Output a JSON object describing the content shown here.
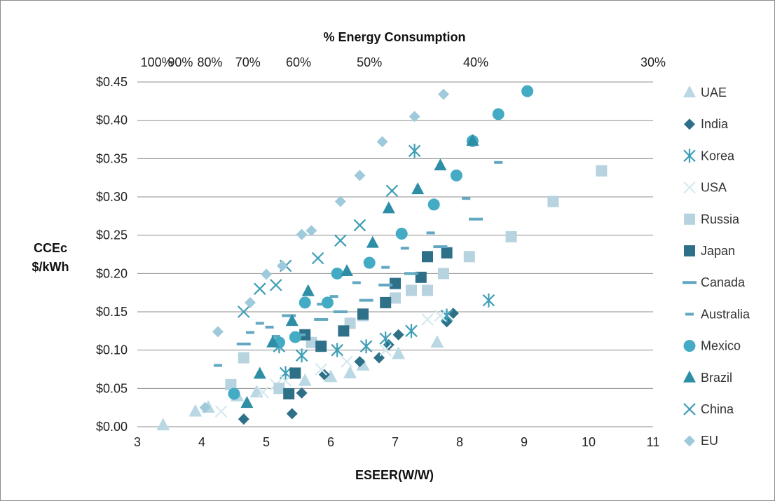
{
  "chart_data": {
    "type": "scatter",
    "xlabel": "ESEER(W/W)",
    "x2label": "% Energy Consumption",
    "ylabel_line1": "CCEc",
    "ylabel_line2": "$/kWh",
    "xlim": [
      3,
      11
    ],
    "ylim": [
      0,
      0.45
    ],
    "x_ticks": [
      "3",
      "4",
      "5",
      "6",
      "7",
      "8",
      "9",
      "10",
      "11"
    ],
    "x2_ticks": [
      "100%",
      "90%",
      "80%",
      "70%",
      "60%",
      "50%",
      "40%",
      "30%"
    ],
    "y_ticks": [
      "$0.00",
      "$0.05",
      "$0.10",
      "$0.15",
      "$0.20",
      "$0.25",
      "$0.30",
      "$0.35",
      "$0.40",
      "$0.45"
    ],
    "grid": "horizontal",
    "legend_position": "right",
    "series": [
      {
        "name": "UAE",
        "marker": "triangle",
        "color": "#b9d8e3",
        "points": [
          [
            3.4,
            0.002
          ],
          [
            3.9,
            0.02
          ],
          [
            4.1,
            0.025
          ],
          [
            4.55,
            0.04
          ],
          [
            4.85,
            0.045
          ],
          [
            5.6,
            0.06
          ],
          [
            6.0,
            0.065
          ],
          [
            6.3,
            0.07
          ],
          [
            6.5,
            0.08
          ],
          [
            7.05,
            0.095
          ],
          [
            7.65,
            0.11
          ]
        ]
      },
      {
        "name": "India",
        "marker": "diamond",
        "color": "#2e7088",
        "points": [
          [
            4.65,
            0.01
          ],
          [
            5.4,
            0.017
          ],
          [
            5.55,
            0.044
          ],
          [
            5.9,
            0.068
          ],
          [
            6.45,
            0.085
          ],
          [
            6.75,
            0.09
          ],
          [
            6.9,
            0.107
          ],
          [
            7.05,
            0.12
          ],
          [
            7.8,
            0.137
          ],
          [
            7.9,
            0.148
          ]
        ]
      },
      {
        "name": "Korea",
        "marker": "asterisk",
        "color": "#3d9eb5",
        "points": [
          [
            5.2,
            0.105
          ],
          [
            5.3,
            0.07
          ],
          [
            5.55,
            0.093
          ],
          [
            6.1,
            0.1
          ],
          [
            6.55,
            0.105
          ],
          [
            6.85,
            0.115
          ],
          [
            7.25,
            0.125
          ],
          [
            7.8,
            0.145
          ],
          [
            8.45,
            0.165
          ],
          [
            7.3,
            0.36
          ]
        ]
      },
      {
        "name": "USA",
        "marker": "x",
        "color": "#d6e9f0",
        "points": [
          [
            4.3,
            0.02
          ],
          [
            4.95,
            0.045
          ],
          [
            5.15,
            0.055
          ],
          [
            5.3,
            0.06
          ],
          [
            5.85,
            0.075
          ],
          [
            6.25,
            0.085
          ],
          [
            6.85,
            0.1
          ],
          [
            7.5,
            0.14
          ],
          [
            7.7,
            0.145
          ]
        ]
      },
      {
        "name": "Russia",
        "marker": "square",
        "color": "#b6d3df",
        "points": [
          [
            4.45,
            0.055
          ],
          [
            4.65,
            0.09
          ],
          [
            5.2,
            0.05
          ],
          [
            5.7,
            0.11
          ],
          [
            6.3,
            0.135
          ],
          [
            6.5,
            0.145
          ],
          [
            7.0,
            0.168
          ],
          [
            7.25,
            0.178
          ],
          [
            7.5,
            0.178
          ],
          [
            7.75,
            0.2
          ],
          [
            8.15,
            0.222
          ],
          [
            8.8,
            0.248
          ],
          [
            9.45,
            0.294
          ],
          [
            10.2,
            0.334
          ]
        ]
      },
      {
        "name": "Japan",
        "marker": "square",
        "color": "#2e7088",
        "points": [
          [
            5.35,
            0.043
          ],
          [
            5.45,
            0.07
          ],
          [
            5.6,
            0.12
          ],
          [
            5.85,
            0.105
          ],
          [
            6.2,
            0.125
          ],
          [
            6.5,
            0.147
          ],
          [
            6.85,
            0.162
          ],
          [
            7.0,
            0.187
          ],
          [
            7.4,
            0.195
          ],
          [
            7.5,
            0.222
          ],
          [
            7.8,
            0.227
          ]
        ]
      },
      {
        "name": "Canada",
        "marker": "dash-long",
        "color": "#62a8c2",
        "points": [
          [
            4.65,
            0.108
          ],
          [
            5.35,
            0.145
          ],
          [
            5.5,
            0.12
          ],
          [
            5.85,
            0.14
          ],
          [
            6.15,
            0.15
          ],
          [
            6.55,
            0.165
          ],
          [
            6.85,
            0.185
          ],
          [
            7.25,
            0.2
          ],
          [
            7.7,
            0.235
          ],
          [
            8.25,
            0.271
          ]
        ]
      },
      {
        "name": "Australia",
        "marker": "dash-short",
        "color": "#62a8c2",
        "points": [
          [
            4.25,
            0.08
          ],
          [
            4.75,
            0.123
          ],
          [
            4.9,
            0.135
          ],
          [
            5.05,
            0.13
          ],
          [
            5.15,
            0.118
          ],
          [
            5.85,
            0.16
          ],
          [
            6.05,
            0.17
          ],
          [
            6.4,
            0.188
          ],
          [
            6.85,
            0.208
          ],
          [
            7.15,
            0.233
          ],
          [
            7.55,
            0.253
          ],
          [
            8.1,
            0.298
          ],
          [
            8.6,
            0.345
          ]
        ]
      },
      {
        "name": "Mexico",
        "marker": "circle",
        "color": "#43abc3",
        "points": [
          [
            4.5,
            0.043
          ],
          [
            5.2,
            0.11
          ],
          [
            5.45,
            0.117
          ],
          [
            5.6,
            0.162
          ],
          [
            5.95,
            0.162
          ],
          [
            6.1,
            0.2
          ],
          [
            6.6,
            0.214
          ],
          [
            7.1,
            0.252
          ],
          [
            7.6,
            0.29
          ],
          [
            7.95,
            0.328
          ],
          [
            8.2,
            0.373
          ],
          [
            8.6,
            0.408
          ],
          [
            9.05,
            0.438
          ]
        ]
      },
      {
        "name": "Brazil",
        "marker": "triangle",
        "color": "#2e8ea6",
        "points": [
          [
            4.7,
            0.031
          ],
          [
            4.9,
            0.069
          ],
          [
            5.1,
            0.11
          ],
          [
            5.4,
            0.138
          ],
          [
            5.65,
            0.177
          ],
          [
            6.25,
            0.203
          ],
          [
            6.65,
            0.24
          ],
          [
            6.9,
            0.285
          ],
          [
            7.35,
            0.31
          ],
          [
            7.7,
            0.341
          ],
          [
            8.2,
            0.373
          ]
        ]
      },
      {
        "name": "China",
        "marker": "x",
        "color": "#3d9eb5",
        "points": [
          [
            4.65,
            0.15
          ],
          [
            4.9,
            0.18
          ],
          [
            5.15,
            0.185
          ],
          [
            5.3,
            0.21
          ],
          [
            5.8,
            0.22
          ],
          [
            6.15,
            0.243
          ],
          [
            6.45,
            0.263
          ],
          [
            6.95,
            0.308
          ]
        ]
      },
      {
        "name": "EU",
        "marker": "diamond",
        "color": "#9fcadb",
        "points": [
          [
            4.05,
            0.025
          ],
          [
            4.25,
            0.124
          ],
          [
            4.75,
            0.162
          ],
          [
            5.0,
            0.199
          ],
          [
            5.25,
            0.21
          ],
          [
            5.55,
            0.251
          ],
          [
            5.7,
            0.256
          ],
          [
            6.15,
            0.294
          ],
          [
            6.45,
            0.328
          ],
          [
            6.8,
            0.372
          ],
          [
            7.3,
            0.405
          ],
          [
            7.75,
            0.434
          ]
        ]
      }
    ]
  }
}
